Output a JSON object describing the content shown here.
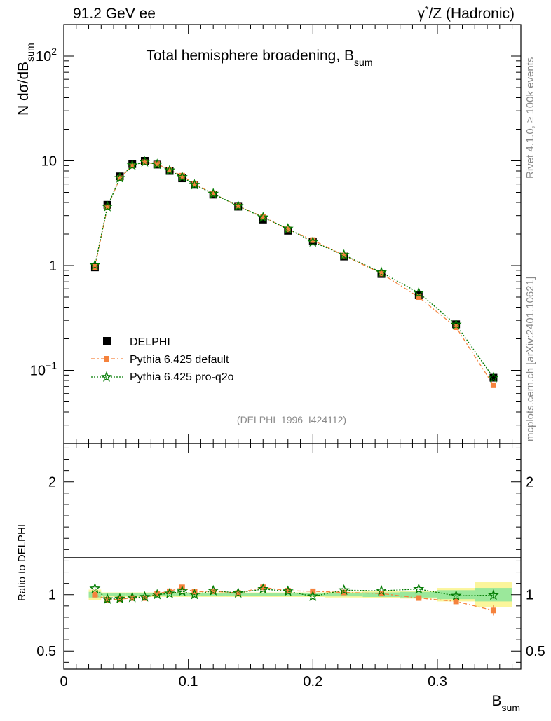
{
  "header": {
    "left": "91.2 GeV ee",
    "right_gamma": "γ",
    "right_star": "*",
    "right_rest": "/Z (Hadronic)"
  },
  "side": {
    "rivet": "Rivet 4.1.0, ≥ 100k events",
    "mcplots": "mcplots.cern.ch [arXiv:2401.10621]"
  },
  "colors": {
    "data": "#000000",
    "default": "#f5823c",
    "proq2o": "#007a00",
    "band_yellow": "#fbf59b",
    "band_green": "#9be89b"
  },
  "chart_data": [
    {
      "type": "scatter",
      "scale": "log",
      "title_main": "Total hemisphere broadening, B",
      "title_sub": "sum",
      "ylabel_main": "N  dσ/dB",
      "ylabel_sub": "sum",
      "watermark": "(DELPHI_1996_I424112)",
      "xlim": [
        0,
        0.367
      ],
      "ylim": [
        0.02,
        200
      ],
      "y_ticks": [
        {
          "v": 100,
          "base": "10",
          "exp": "2"
        },
        {
          "v": 10,
          "base": "10",
          "exp": ""
        },
        {
          "v": 1,
          "base": "1",
          "exp": ""
        },
        {
          "v": 0.1,
          "base": "10",
          "exp": "−1"
        }
      ],
      "x": [
        0.025,
        0.035,
        0.045,
        0.055,
        0.065,
        0.075,
        0.085,
        0.095,
        0.105,
        0.12,
        0.14,
        0.16,
        0.18,
        0.2,
        0.225,
        0.255,
        0.285,
        0.315,
        0.345
      ],
      "legend": {
        "data": "DELPHI",
        "default": "Pythia 6.425 default",
        "proq2o": "Pythia 6.425 pro-q2o"
      },
      "series": [
        {
          "name": "DELPHI",
          "key": "data",
          "values": [
            0.96,
            3.8,
            7.1,
            9.3,
            10.0,
            9.2,
            8.0,
            6.8,
            5.9,
            4.75,
            3.65,
            2.75,
            2.15,
            1.7,
            1.22,
            0.83,
            0.52,
            0.275,
            0.085
          ]
        },
        {
          "name": "Pythia 6.425 default",
          "key": "default",
          "values": [
            0.97,
            3.6,
            6.8,
            9.0,
            9.7,
            9.3,
            8.2,
            7.2,
            6.0,
            4.85,
            3.7,
            2.92,
            2.22,
            1.75,
            1.25,
            0.84,
            0.5,
            0.258,
            0.072
          ]
        },
        {
          "name": "Pythia 6.425 pro-q2o",
          "key": "proq2o",
          "values": [
            1.01,
            3.65,
            6.85,
            9.05,
            9.75,
            9.25,
            8.1,
            7.0,
            5.9,
            4.85,
            3.7,
            2.88,
            2.25,
            1.68,
            1.26,
            0.86,
            0.55,
            0.273,
            0.085
          ]
        }
      ]
    },
    {
      "type": "scatter",
      "ylabel": "Ratio to DELPHI",
      "xlabel_main": "B",
      "xlabel_sub": "sum",
      "xlim": [
        0,
        0.367
      ],
      "ylim": [
        0.34,
        2.34
      ],
      "y_ticks": [
        {
          "v": 2,
          "label": "2"
        },
        {
          "v": 1,
          "label": "1"
        },
        {
          "v": 0.5,
          "label": "0.5"
        }
      ],
      "x_ticks": [
        {
          "v": 0,
          "label": "0"
        },
        {
          "v": 0.1,
          "label": "0.1"
        },
        {
          "v": 0.2,
          "label": "0.2"
        },
        {
          "v": 0.3,
          "label": "0.3"
        }
      ],
      "x": [
        0.025,
        0.035,
        0.045,
        0.055,
        0.065,
        0.075,
        0.085,
        0.095,
        0.105,
        0.12,
        0.14,
        0.16,
        0.18,
        0.2,
        0.225,
        0.255,
        0.285,
        0.315,
        0.345
      ],
      "bins": [
        [
          0.02,
          0.03
        ],
        [
          0.03,
          0.04
        ],
        [
          0.04,
          0.05
        ],
        [
          0.05,
          0.06
        ],
        [
          0.06,
          0.07
        ],
        [
          0.07,
          0.08
        ],
        [
          0.08,
          0.09
        ],
        [
          0.09,
          0.1
        ],
        [
          0.1,
          0.11
        ],
        [
          0.11,
          0.13
        ],
        [
          0.13,
          0.15
        ],
        [
          0.15,
          0.17
        ],
        [
          0.17,
          0.19
        ],
        [
          0.19,
          0.21
        ],
        [
          0.21,
          0.24
        ],
        [
          0.24,
          0.27
        ],
        [
          0.27,
          0.3
        ],
        [
          0.3,
          0.33
        ],
        [
          0.33,
          0.36
        ]
      ],
      "band_total": [
        0.045,
        0.02,
        0.02,
        0.02,
        0.02,
        0.02,
        0.02,
        0.02,
        0.02,
        0.02,
        0.02,
        0.02,
        0.02,
        0.02,
        0.025,
        0.03,
        0.035,
        0.06,
        0.11
      ],
      "band_stat": [
        0.025,
        0.012,
        0.012,
        0.012,
        0.012,
        0.012,
        0.012,
        0.012,
        0.012,
        0.012,
        0.012,
        0.012,
        0.012,
        0.012,
        0.015,
        0.02,
        0.025,
        0.04,
        0.06
      ],
      "series": [
        {
          "name": "Pythia 6.425 default",
          "key": "default",
          "values": [
            1.0,
            0.955,
            0.96,
            0.97,
            0.97,
            1.01,
            1.03,
            1.065,
            1.025,
            1.03,
            1.015,
            1.065,
            1.035,
            1.03,
            1.02,
            1.01,
            0.97,
            0.94,
            0.86
          ],
          "errors": [
            0.0,
            0.0,
            0.0,
            0.0,
            0.0,
            0.0,
            0.0,
            0.0,
            0.0,
            0.0,
            0.0,
            0.0,
            0.0,
            0.0,
            0.0,
            0.0,
            0.012,
            0.025,
            0.045
          ]
        },
        {
          "name": "Pythia 6.425 pro-q2o",
          "key": "proq2o",
          "values": [
            1.055,
            0.96,
            0.965,
            0.975,
            0.98,
            1.0,
            1.01,
            1.03,
            1.0,
            1.035,
            1.015,
            1.05,
            1.03,
            0.985,
            1.04,
            1.035,
            1.05,
            0.99,
            0.995
          ],
          "errors": [
            0.0,
            0.0,
            0.0,
            0.0,
            0.0,
            0.0,
            0.0,
            0.0,
            0.0,
            0.0,
            0.0,
            0.0,
            0.0,
            0.0,
            0.0,
            0.0,
            0.0,
            0.02,
            0.03
          ]
        }
      ]
    }
  ]
}
